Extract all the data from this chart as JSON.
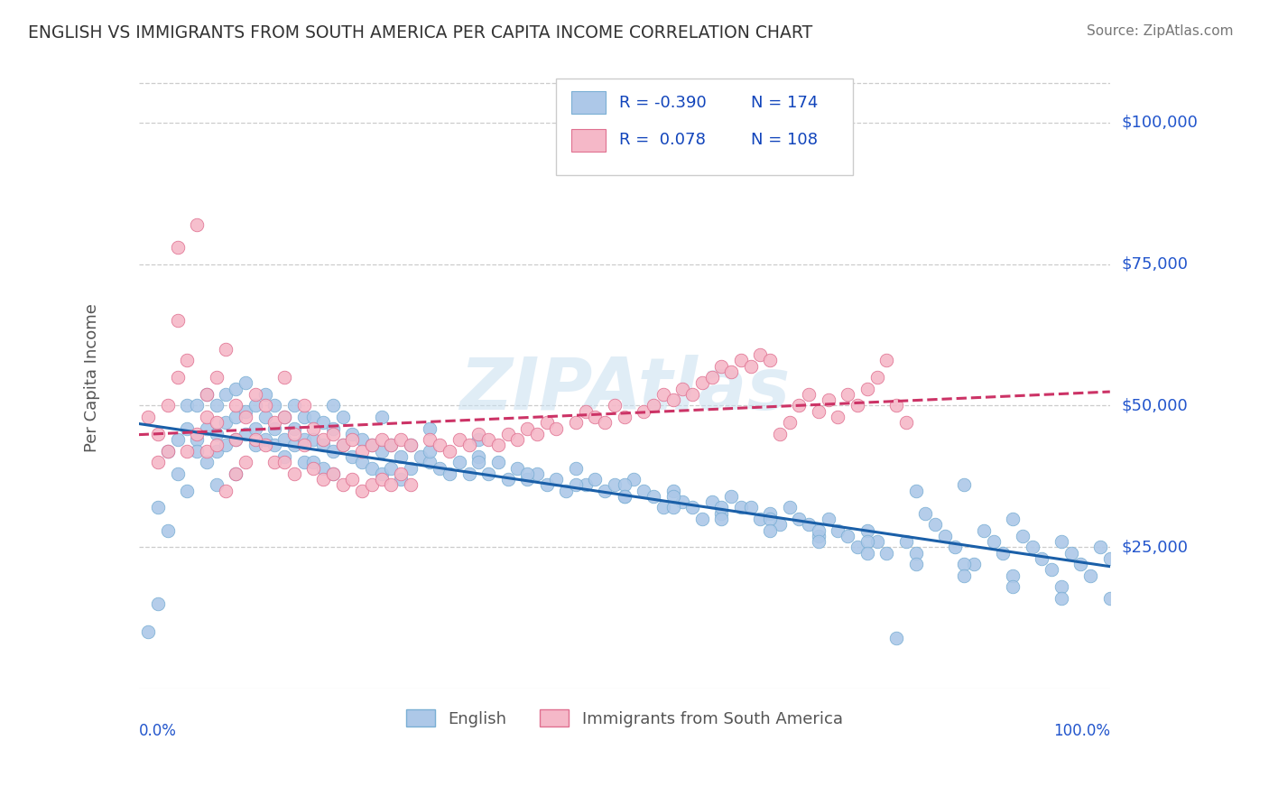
{
  "title": "ENGLISH VS IMMIGRANTS FROM SOUTH AMERICA PER CAPITA INCOME CORRELATION CHART",
  "source": "Source: ZipAtlas.com",
  "ylabel": "Per Capita Income",
  "watermark": "ZIPAtlas",
  "xlim": [
    0.0,
    1.0
  ],
  "ylim": [
    0,
    110000
  ],
  "yticks": [
    25000,
    50000,
    75000,
    100000
  ],
  "ytick_labels": [
    "$25,000",
    "$50,000",
    "$75,000",
    "$100,000"
  ],
  "background_color": "#ffffff",
  "grid_color": "#cccccc",
  "title_color": "#333333",
  "label_color": "#555555",
  "tick_color": "#2255cc",
  "source_color": "#777777",
  "series": [
    {
      "name": "English",
      "R": -0.39,
      "N": 174,
      "color": "#adc8e8",
      "edge_color": "#7aafd4",
      "trend_color": "#1a5fa8",
      "trend_dash": false,
      "x": [
        0.01,
        0.02,
        0.02,
        0.03,
        0.03,
        0.04,
        0.04,
        0.05,
        0.05,
        0.05,
        0.06,
        0.06,
        0.06,
        0.07,
        0.07,
        0.07,
        0.08,
        0.08,
        0.08,
        0.08,
        0.09,
        0.09,
        0.09,
        0.1,
        0.1,
        0.1,
        0.1,
        0.11,
        0.11,
        0.11,
        0.12,
        0.12,
        0.12,
        0.13,
        0.13,
        0.13,
        0.14,
        0.14,
        0.14,
        0.15,
        0.15,
        0.15,
        0.16,
        0.16,
        0.16,
        0.17,
        0.17,
        0.17,
        0.18,
        0.18,
        0.18,
        0.19,
        0.19,
        0.19,
        0.2,
        0.2,
        0.2,
        0.21,
        0.21,
        0.22,
        0.22,
        0.23,
        0.23,
        0.24,
        0.24,
        0.25,
        0.25,
        0.26,
        0.26,
        0.27,
        0.27,
        0.28,
        0.28,
        0.29,
        0.3,
        0.31,
        0.32,
        0.33,
        0.34,
        0.35,
        0.36,
        0.37,
        0.38,
        0.39,
        0.4,
        0.41,
        0.42,
        0.43,
        0.44,
        0.45,
        0.46,
        0.47,
        0.48,
        0.49,
        0.5,
        0.51,
        0.52,
        0.53,
        0.54,
        0.55,
        0.56,
        0.57,
        0.58,
        0.59,
        0.6,
        0.61,
        0.62,
        0.63,
        0.64,
        0.65,
        0.66,
        0.67,
        0.68,
        0.69,
        0.7,
        0.71,
        0.72,
        0.73,
        0.74,
        0.75,
        0.76,
        0.77,
        0.78,
        0.79,
        0.8,
        0.81,
        0.82,
        0.83,
        0.84,
        0.85,
        0.86,
        0.87,
        0.88,
        0.89,
        0.9,
        0.91,
        0.92,
        0.93,
        0.94,
        0.95,
        0.96,
        0.97,
        0.98,
        0.99,
        1.0,
        0.5,
        0.55,
        0.6,
        0.65,
        0.7,
        0.75,
        0.8,
        0.85,
        0.9,
        0.95,
        1.0,
        0.3,
        0.35,
        0.4,
        0.45,
        0.5,
        0.55,
        0.6,
        0.65,
        0.7,
        0.75,
        0.8,
        0.85,
        0.9,
        0.95,
        0.2,
        0.25,
        0.3,
        0.35
      ],
      "y": [
        10000,
        15000,
        32000,
        42000,
        28000,
        44000,
        38000,
        50000,
        46000,
        35000,
        44000,
        50000,
        42000,
        46000,
        40000,
        52000,
        50000,
        45000,
        42000,
        36000,
        52000,
        47000,
        43000,
        53000,
        48000,
        44000,
        38000,
        54000,
        49000,
        45000,
        50000,
        46000,
        43000,
        52000,
        48000,
        44000,
        50000,
        46000,
        43000,
        48000,
        44000,
        41000,
        50000,
        46000,
        43000,
        48000,
        44000,
        40000,
        48000,
        44000,
        40000,
        47000,
        43000,
        39000,
        46000,
        42000,
        38000,
        48000,
        43000,
        45000,
        41000,
        44000,
        40000,
        43000,
        39000,
        42000,
        38000,
        43000,
        39000,
        41000,
        37000,
        43000,
        39000,
        41000,
        40000,
        39000,
        38000,
        40000,
        38000,
        41000,
        38000,
        40000,
        37000,
        39000,
        37000,
        38000,
        36000,
        37000,
        35000,
        39000,
        36000,
        37000,
        35000,
        36000,
        34000,
        37000,
        35000,
        34000,
        32000,
        35000,
        33000,
        32000,
        30000,
        33000,
        31000,
        34000,
        32000,
        32000,
        30000,
        31000,
        29000,
        32000,
        30000,
        29000,
        27000,
        30000,
        28000,
        27000,
        25000,
        28000,
        26000,
        24000,
        9000,
        26000,
        35000,
        31000,
        29000,
        27000,
        25000,
        36000,
        22000,
        28000,
        26000,
        24000,
        30000,
        27000,
        25000,
        23000,
        21000,
        26000,
        24000,
        22000,
        20000,
        25000,
        23000,
        36000,
        34000,
        32000,
        30000,
        28000,
        26000,
        24000,
        22000,
        20000,
        18000,
        16000,
        42000,
        40000,
        38000,
        36000,
        34000,
        32000,
        30000,
        28000,
        26000,
        24000,
        22000,
        20000,
        18000,
        16000,
        50000,
        48000,
        46000,
        44000
      ]
    },
    {
      "name": "Immigrants from South America",
      "R": 0.078,
      "N": 108,
      "color": "#f5b8c8",
      "edge_color": "#e07090",
      "trend_color": "#cc3366",
      "trend_dash": true,
      "x": [
        0.01,
        0.02,
        0.02,
        0.03,
        0.03,
        0.04,
        0.04,
        0.04,
        0.05,
        0.05,
        0.06,
        0.06,
        0.07,
        0.07,
        0.07,
        0.08,
        0.08,
        0.08,
        0.09,
        0.09,
        0.1,
        0.1,
        0.1,
        0.11,
        0.11,
        0.12,
        0.12,
        0.13,
        0.13,
        0.14,
        0.14,
        0.15,
        0.15,
        0.15,
        0.16,
        0.16,
        0.17,
        0.17,
        0.18,
        0.18,
        0.19,
        0.19,
        0.2,
        0.2,
        0.21,
        0.21,
        0.22,
        0.22,
        0.23,
        0.23,
        0.24,
        0.24,
        0.25,
        0.25,
        0.26,
        0.26,
        0.27,
        0.27,
        0.28,
        0.28,
        0.3,
        0.31,
        0.32,
        0.33,
        0.34,
        0.35,
        0.36,
        0.37,
        0.38,
        0.39,
        0.4,
        0.41,
        0.42,
        0.43,
        0.45,
        0.46,
        0.47,
        0.48,
        0.49,
        0.5,
        0.52,
        0.53,
        0.54,
        0.55,
        0.56,
        0.57,
        0.58,
        0.59,
        0.6,
        0.61,
        0.62,
        0.63,
        0.64,
        0.65,
        0.66,
        0.67,
        0.68,
        0.69,
        0.7,
        0.71,
        0.72,
        0.73,
        0.74,
        0.75,
        0.76,
        0.77,
        0.78,
        0.79
      ],
      "y": [
        48000,
        45000,
        40000,
        50000,
        42000,
        78000,
        55000,
        65000,
        58000,
        42000,
        45000,
        82000,
        48000,
        52000,
        42000,
        55000,
        47000,
        43000,
        60000,
        35000,
        50000,
        44000,
        38000,
        48000,
        40000,
        52000,
        44000,
        50000,
        43000,
        47000,
        40000,
        55000,
        48000,
        40000,
        45000,
        38000,
        50000,
        43000,
        46000,
        39000,
        44000,
        37000,
        45000,
        38000,
        43000,
        36000,
        44000,
        37000,
        42000,
        35000,
        43000,
        36000,
        44000,
        37000,
        43000,
        36000,
        44000,
        38000,
        43000,
        36000,
        44000,
        43000,
        42000,
        44000,
        43000,
        45000,
        44000,
        43000,
        45000,
        44000,
        46000,
        45000,
        47000,
        46000,
        47000,
        49000,
        48000,
        47000,
        50000,
        48000,
        49000,
        50000,
        52000,
        51000,
        53000,
        52000,
        54000,
        55000,
        57000,
        56000,
        58000,
        57000,
        59000,
        58000,
        45000,
        47000,
        50000,
        52000,
        49000,
        51000,
        48000,
        52000,
        50000,
        53000,
        55000,
        58000,
        50000,
        47000
      ]
    }
  ]
}
